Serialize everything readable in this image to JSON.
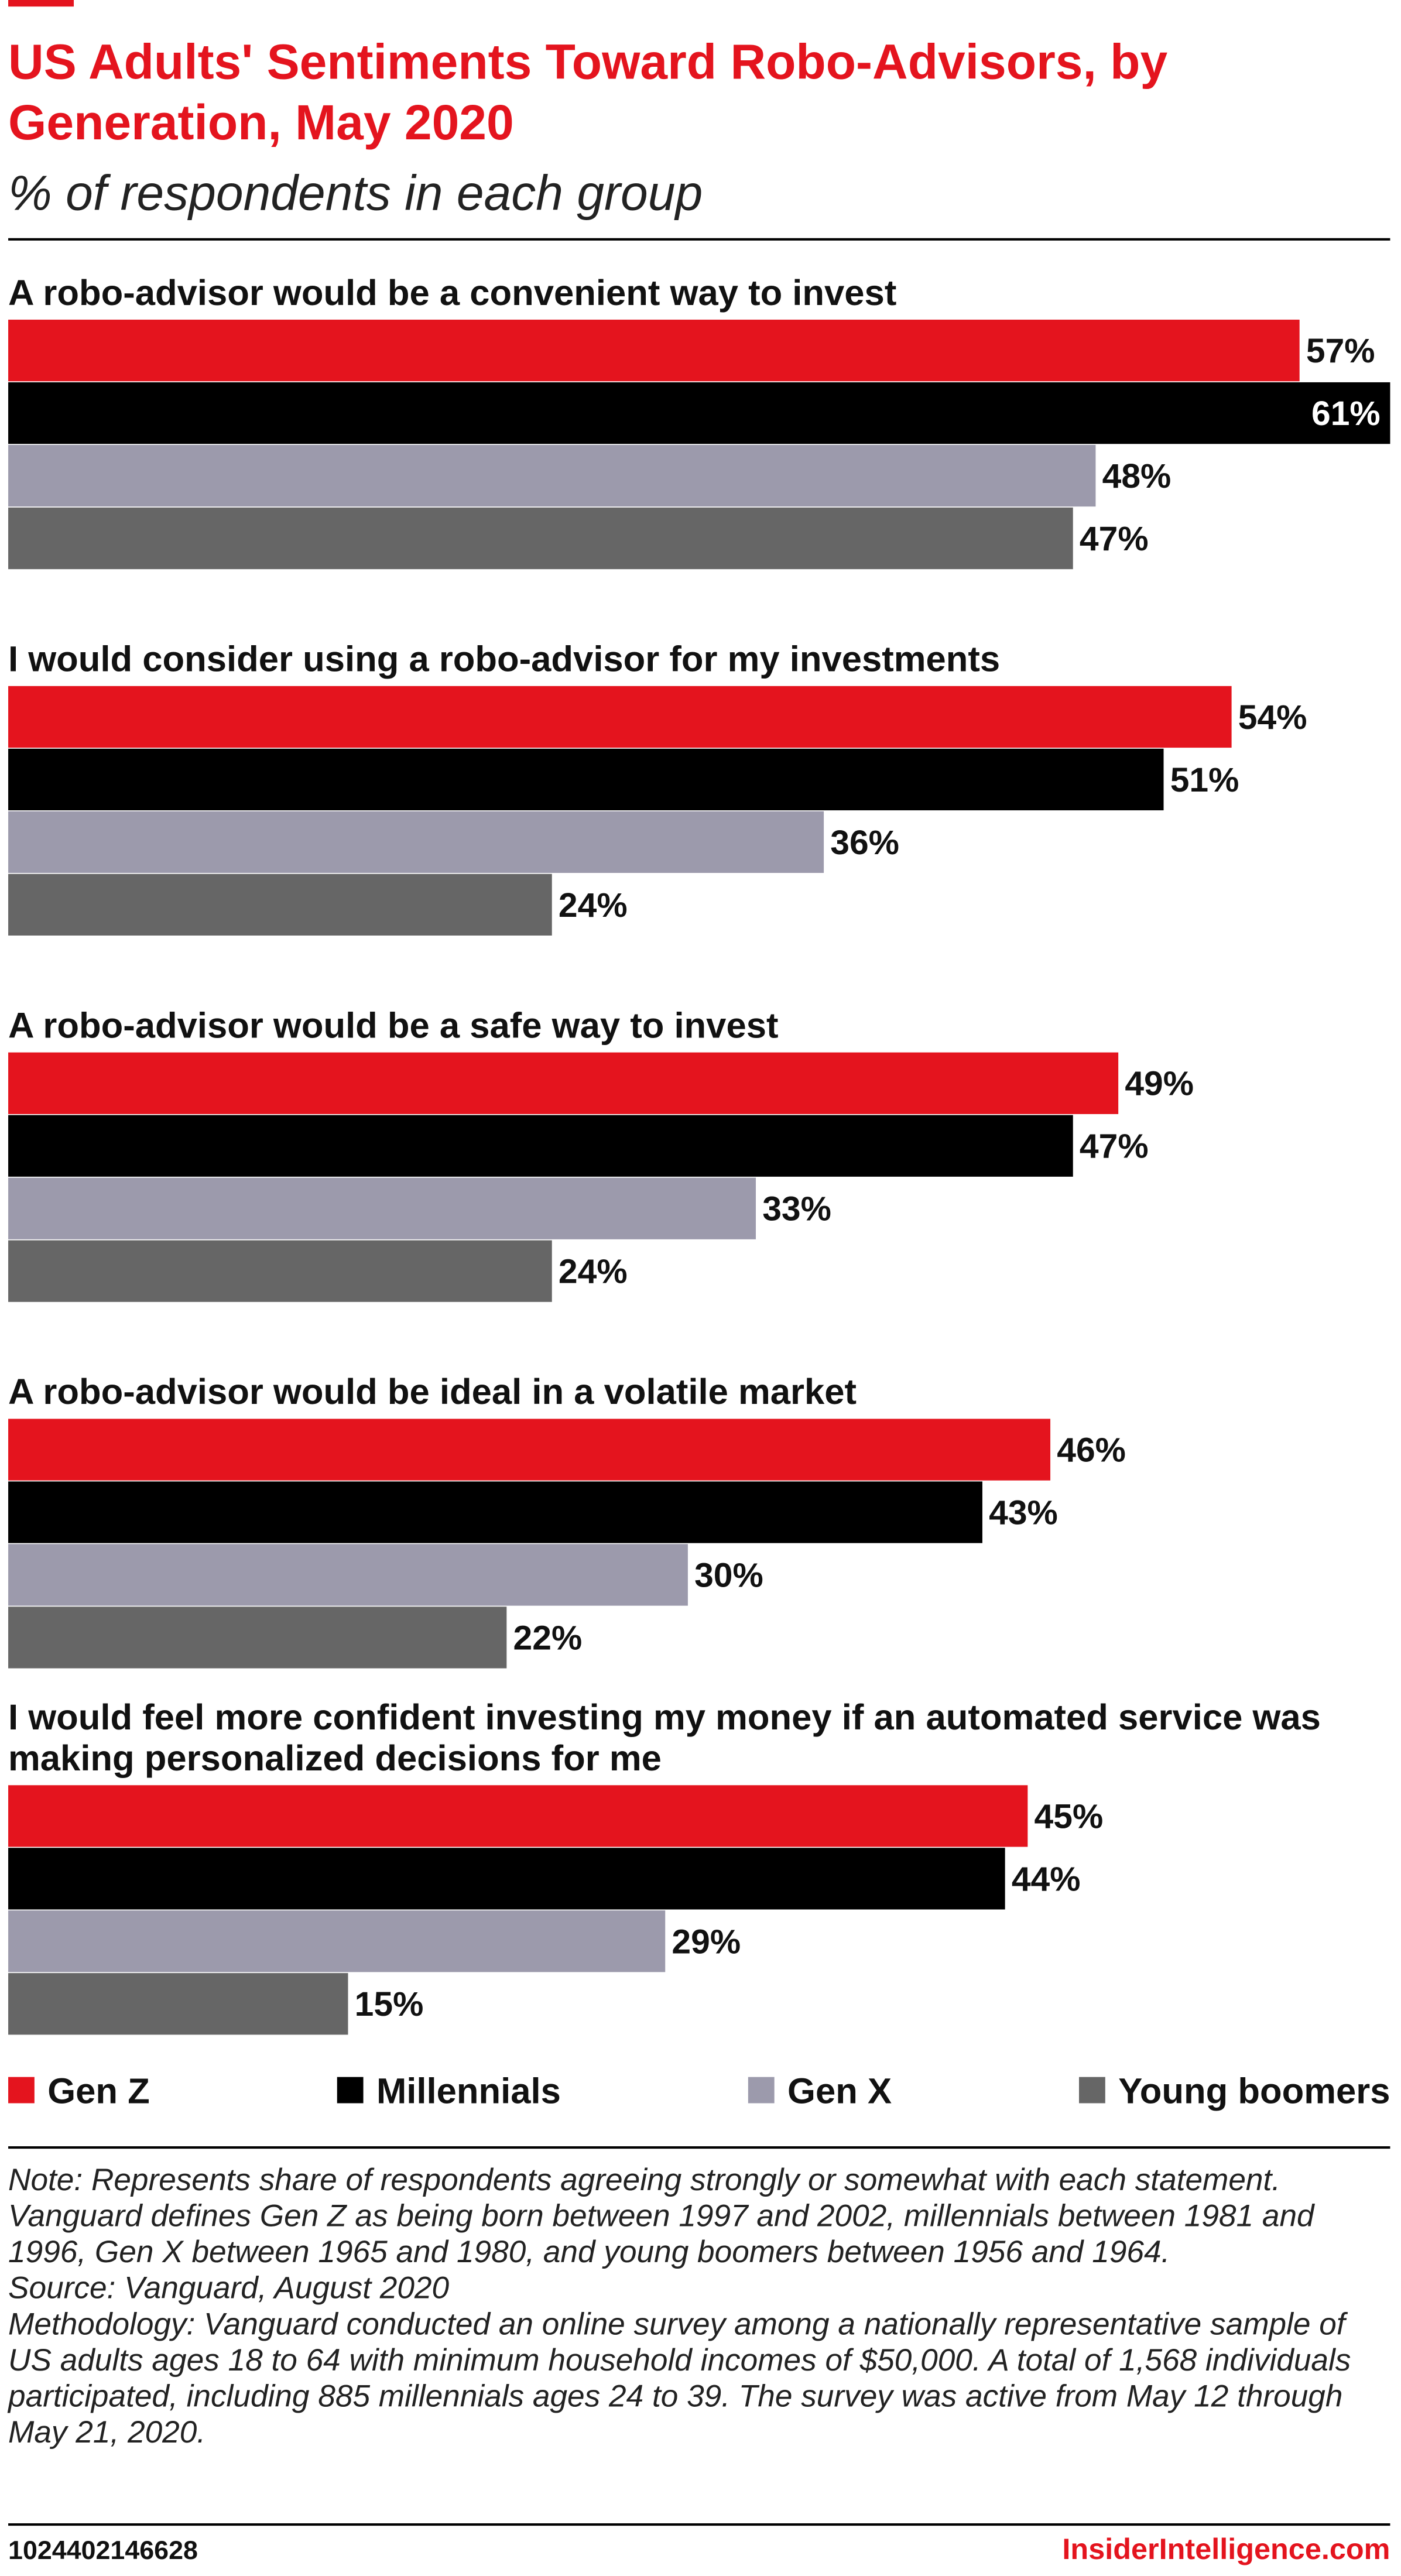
{
  "chart_data": {
    "type": "bar",
    "orientation": "horizontal",
    "title": "US Adults' Sentiments Toward Robo-Advisors, by Generation, May 2020",
    "subtitle": "% of respondents in each group",
    "categories": [
      "A robo-advisor would be a convenient way to invest",
      "I would consider using a robo-advisor for my investments",
      "A robo-advisor would be a safe way to invest",
      "A robo-advisor would be ideal in a volatile market",
      "I would feel more confident investing my money if an automated service was making personalized decisions for me"
    ],
    "series": [
      {
        "name": "Gen Z",
        "color": "#e4141e",
        "values": [
          57,
          54,
          49,
          46,
          45
        ],
        "value_labels": [
          "57%",
          "54%",
          "49%",
          "46%",
          "45%"
        ]
      },
      {
        "name": "Millennials",
        "color": "#000000",
        "values": [
          61,
          51,
          47,
          43,
          44
        ],
        "value_labels": [
          "61%",
          "51%",
          "47%",
          "43%",
          "44%"
        ]
      },
      {
        "name": "Gen X",
        "color": "#9c9aac",
        "values": [
          48,
          36,
          33,
          30,
          29
        ],
        "value_labels": [
          "48%",
          "36%",
          "33%",
          "30%",
          "29%"
        ]
      },
      {
        "name": "Young boomers",
        "color": "#666666",
        "values": [
          47,
          24,
          24,
          22,
          15
        ],
        "value_labels": [
          "47%",
          "24%",
          "24%",
          "22%",
          "15%"
        ]
      }
    ],
    "xlim": [
      0,
      61
    ],
    "note": "Note: Represents share of respondents agreeing strongly or somewhat with each statement. Vanguard defines Gen Z as being born between 1997 and 2002, millennials between 1981 and 1996, Gen X between 1965 and 1980, and young boomers between 1956 and 1964.",
    "source": "Source: Vanguard, August 2020",
    "methodology": "Methodology: Vanguard conducted an online survey among a nationally representative sample of US adults ages 18 to 64 with minimum household incomes of $50,000. A total of 1,568 individuals participated, including 885 millennials ages 24 to 39. The survey was active from May 12 through May 21, 2020.",
    "chart_id": "1024402146628",
    "brand": "InsiderIntelligence.com"
  }
}
